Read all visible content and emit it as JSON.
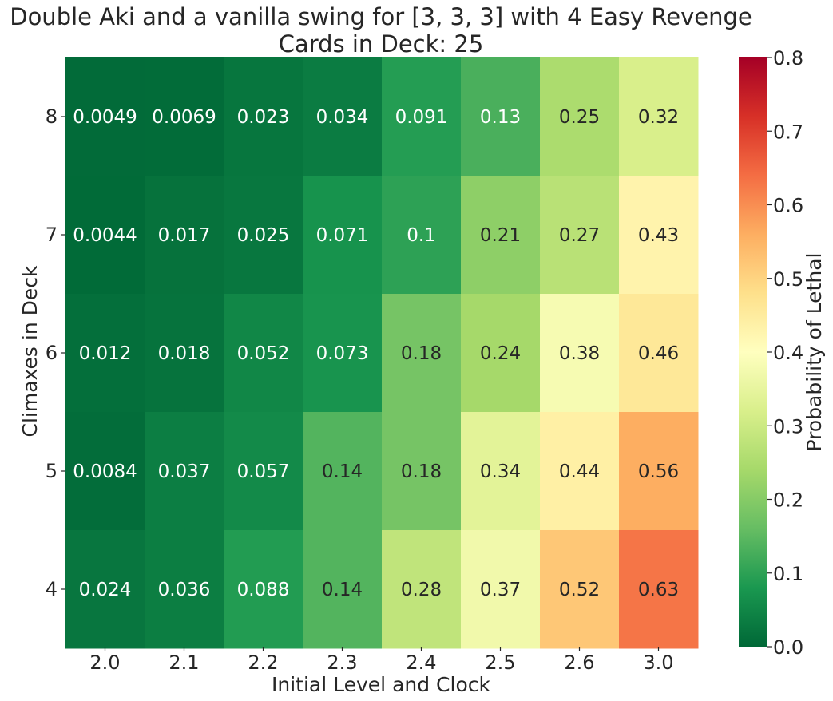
{
  "chart_data": {
    "type": "heatmap",
    "title": "Double Aki and a vanilla swing for [3, 3, 3] with 4 Easy Revenge",
    "subtitle": "Cards in Deck: 25",
    "xlabel": "Initial Level and Clock",
    "ylabel": "Climaxes in Deck",
    "x_categories": [
      "2.0",
      "2.1",
      "2.2",
      "2.3",
      "2.4",
      "2.5",
      "2.6",
      "3.0"
    ],
    "y_categories": [
      "8",
      "7",
      "6",
      "5",
      "4"
    ],
    "values": [
      [
        0.0049,
        0.0069,
        0.023,
        0.034,
        0.091,
        0.13,
        0.25,
        0.32
      ],
      [
        0.0044,
        0.017,
        0.025,
        0.071,
        0.1,
        0.21,
        0.27,
        0.43
      ],
      [
        0.012,
        0.018,
        0.052,
        0.073,
        0.18,
        0.24,
        0.38,
        0.46
      ],
      [
        0.0084,
        0.037,
        0.057,
        0.14,
        0.18,
        0.34,
        0.44,
        0.56
      ],
      [
        0.024,
        0.036,
        0.088,
        0.14,
        0.28,
        0.37,
        0.52,
        0.63
      ]
    ],
    "value_labels": [
      [
        "0.0049",
        "0.0069",
        "0.023",
        "0.034",
        "0.091",
        "0.13",
        "0.25",
        "0.32"
      ],
      [
        "0.0044",
        "0.017",
        "0.025",
        "0.071",
        "0.1",
        "0.21",
        "0.27",
        "0.43"
      ],
      [
        "0.012",
        "0.018",
        "0.052",
        "0.073",
        "0.18",
        "0.24",
        "0.38",
        "0.46"
      ],
      [
        "0.0084",
        "0.037",
        "0.057",
        "0.14",
        "0.18",
        "0.34",
        "0.44",
        "0.56"
      ],
      [
        "0.024",
        "0.036",
        "0.088",
        "0.14",
        "0.28",
        "0.37",
        "0.52",
        "0.63"
      ]
    ],
    "colorbar": {
      "label": "Probability of Lethal",
      "range": [
        0,
        0.8
      ],
      "ticks": [
        "0.0",
        "0.1",
        "0.2",
        "0.3",
        "0.4",
        "0.5",
        "0.6",
        "0.7",
        "0.8"
      ],
      "colormap": "RdYlGn_r"
    },
    "grid": false,
    "legend": "colorbar-right"
  }
}
